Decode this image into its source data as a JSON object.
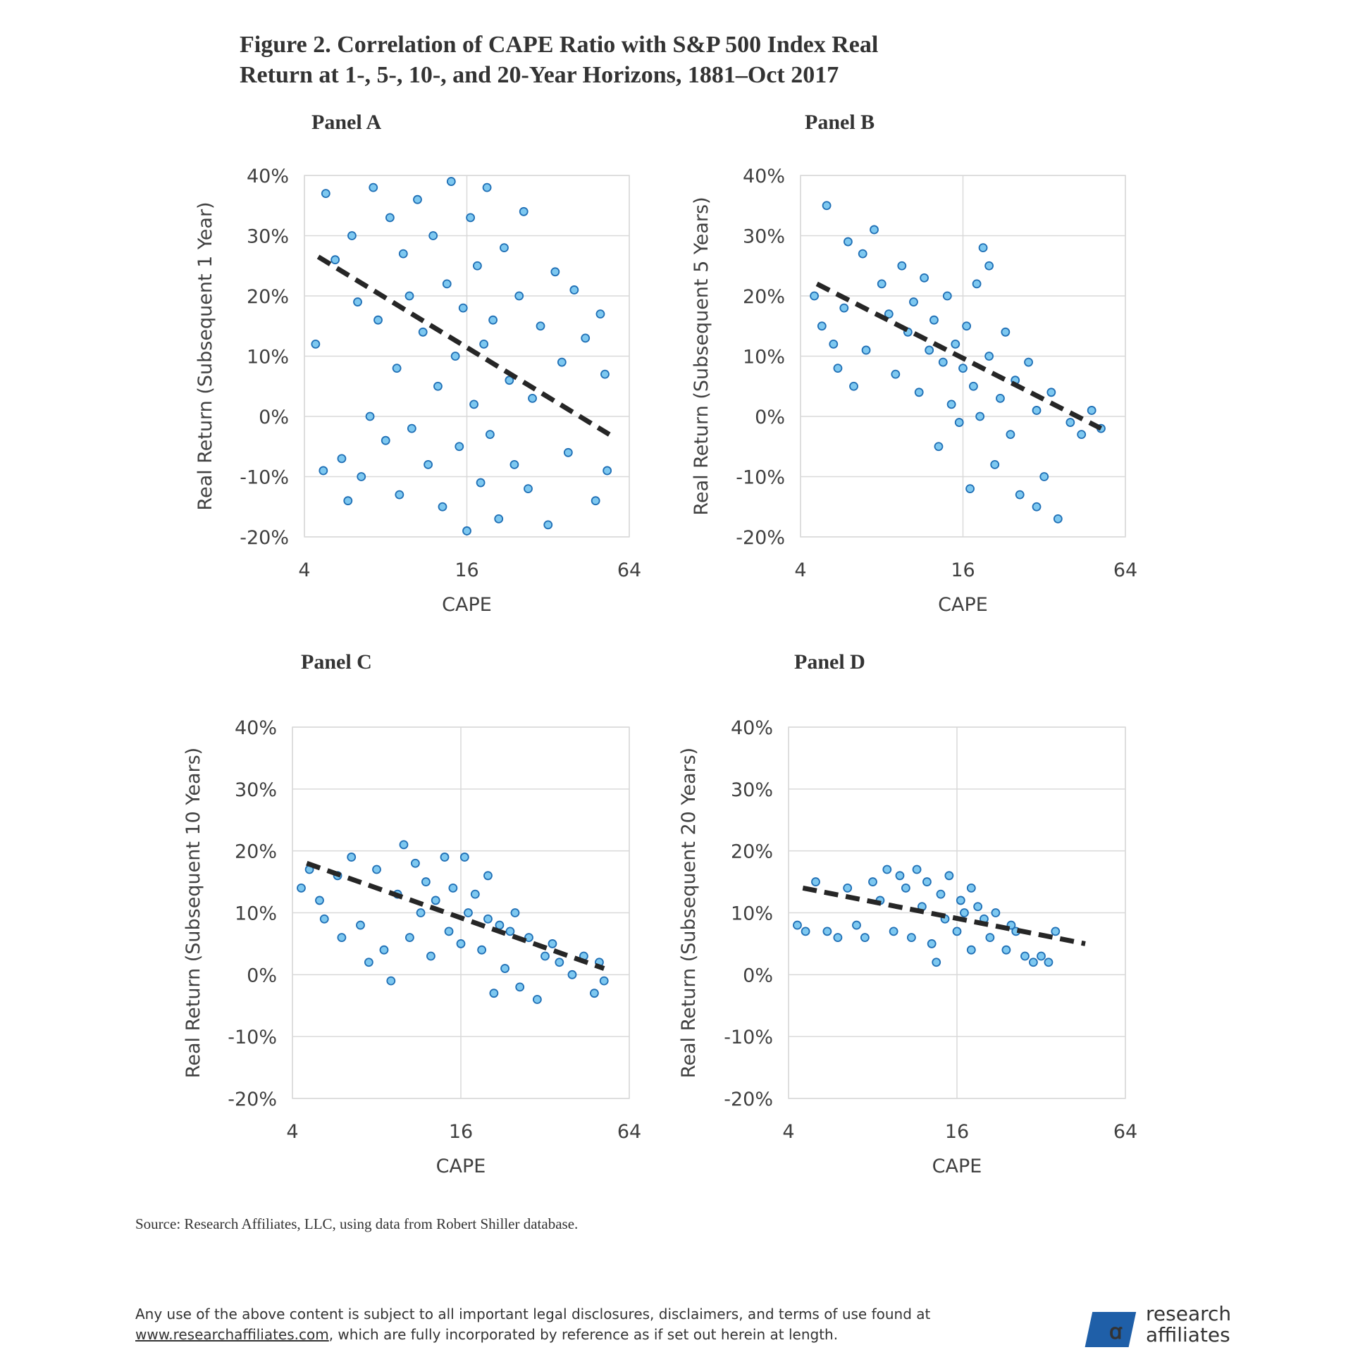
{
  "title": [
    "Figure 2. Correlation of CAPE Ratio with S&P 500 Index Real",
    "Return at 1-, 5-, 10-, and 20-Year Horizons, 1881–Oct 2017"
  ],
  "chart_data": [
    {
      "type": "scatter",
      "title": "Panel A",
      "x_label": "CAPE",
      "y_label": "Real Return (Subsequent 1 Year)",
      "x_scale": "log",
      "xlim": [
        4,
        64
      ],
      "xticks": [
        4,
        16,
        64
      ],
      "ylim": [
        -20,
        40
      ],
      "yticks": [
        {
          "value": -20,
          "label": "-20%"
        },
        {
          "value": -10,
          "label": "-10%"
        },
        {
          "value": 0,
          "label": "0%"
        },
        {
          "value": 10,
          "label": "10%"
        },
        {
          "value": 20,
          "label": "20%"
        },
        {
          "value": 30,
          "label": "30%"
        },
        {
          "value": 40,
          "label": "40%"
        }
      ],
      "grid": true,
      "series": [
        {
          "color": "#7dc8f0",
          "x": [
            4.4,
            4.7,
            4.8,
            5.2,
            5.5,
            5.8,
            6,
            6.3,
            6.5,
            7,
            7.2,
            7.5,
            8,
            8.3,
            8.8,
            9,
            9.3,
            9.8,
            10,
            10.5,
            11,
            11.5,
            12,
            12.5,
            13,
            13.5,
            14,
            14.5,
            15,
            15.5,
            16,
            16.5,
            17,
            17.5,
            18,
            18.5,
            19,
            19.5,
            20,
            21,
            22,
            23,
            24,
            25,
            26,
            27,
            28,
            30,
            32,
            34,
            36,
            38,
            40,
            44,
            48,
            52,
            53,
            50
          ],
          "values": [
            12,
            -9,
            37,
            26,
            -7,
            -14,
            30,
            19,
            -10,
            0,
            38,
            16,
            -4,
            33,
            8,
            -13,
            27,
            20,
            -2,
            36,
            14,
            -8,
            30,
            5,
            -15,
            22,
            39,
            10,
            -5,
            18,
            -19,
            33,
            2,
            25,
            -11,
            12,
            38,
            -3,
            16,
            -17,
            28,
            6,
            -8,
            20,
            34,
            -12,
            3,
            15,
            -18,
            24,
            9,
            -6,
            21,
            13,
            -14,
            7,
            -9,
            17
          ]
        },
        {
          "style": "dashed",
          "color": "#262626",
          "x": [
            4.5,
            54
          ],
          "values": [
            26.5,
            -3
          ]
        }
      ]
    },
    {
      "type": "scatter",
      "title": "Panel B",
      "x_label": "CAPE",
      "y_label": "Real Return (Subsequent 5 Years)",
      "x_scale": "log",
      "xlim": [
        4,
        64
      ],
      "xticks": [
        4,
        16,
        64
      ],
      "ylim": [
        -20,
        40
      ],
      "yticks": [
        {
          "value": -20,
          "label": "-20%"
        },
        {
          "value": -10,
          "label": "-10%"
        },
        {
          "value": 0,
          "label": "0%"
        },
        {
          "value": 10,
          "label": "10%"
        },
        {
          "value": 20,
          "label": "20%"
        },
        {
          "value": 30,
          "label": "30%"
        },
        {
          "value": 40,
          "label": "40%"
        }
      ],
      "grid": true,
      "series": [
        {
          "color": "#7dc8f0",
          "x": [
            4.5,
            4.8,
            5,
            5.3,
            5.5,
            5.8,
            6,
            6.3,
            6.8,
            7,
            7.5,
            8,
            8.5,
            9,
            9.5,
            10,
            10.5,
            11,
            11.5,
            12,
            12.5,
            13,
            13.5,
            14,
            14.5,
            15,
            15.5,
            16,
            16.5,
            17,
            17.5,
            18,
            18.5,
            19,
            20,
            21,
            22,
            23,
            24,
            25,
            26,
            28,
            30,
            32,
            34,
            36,
            40,
            44,
            48,
            52,
            30,
            20
          ],
          "values": [
            20,
            15,
            35,
            12,
            8,
            18,
            29,
            5,
            27,
            11,
            31,
            22,
            17,
            7,
            25,
            14,
            19,
            4,
            23,
            11,
            16,
            -5,
            9,
            20,
            2,
            12,
            -1,
            8,
            15,
            -12,
            5,
            22,
            0,
            28,
            10,
            -8,
            3,
            14,
            -3,
            6,
            -13,
            9,
            1,
            -10,
            4,
            -17,
            -1,
            -3,
            1,
            -2,
            -15,
            25
          ]
        },
        {
          "style": "dashed",
          "color": "#262626",
          "x": [
            4.6,
            52
          ],
          "values": [
            22,
            -2
          ]
        }
      ]
    },
    {
      "type": "scatter",
      "title": "Panel C",
      "x_label": "CAPE",
      "y_label": "Real Return (Subsequent 10 Years)",
      "x_scale": "log",
      "xlim": [
        4,
        64
      ],
      "xticks": [
        4,
        16,
        64
      ],
      "ylim": [
        -20,
        40
      ],
      "yticks": [
        {
          "value": -20,
          "label": "-20%"
        },
        {
          "value": -10,
          "label": "-10%"
        },
        {
          "value": 0,
          "label": "0%"
        },
        {
          "value": 10,
          "label": "10%"
        },
        {
          "value": 20,
          "label": "20%"
        },
        {
          "value": 30,
          "label": "30%"
        },
        {
          "value": 40,
          "label": "40%"
        }
      ],
      "grid": true,
      "series": [
        {
          "color": "#7dc8f0",
          "x": [
            4.3,
            4.6,
            5,
            5.2,
            5.8,
            6,
            6.5,
            7,
            7.5,
            8,
            8.5,
            9,
            9.5,
            10,
            10.5,
            11,
            11.5,
            12,
            12.5,
            13,
            14,
            14.5,
            15,
            16,
            16.5,
            17,
            18,
            19,
            20,
            21,
            22,
            23,
            24,
            26,
            28,
            30,
            32,
            34,
            36,
            40,
            44,
            48,
            52,
            50,
            25,
            20
          ],
          "values": [
            14,
            17,
            12,
            9,
            16,
            6,
            19,
            8,
            2,
            17,
            4,
            -1,
            13,
            21,
            6,
            18,
            10,
            15,
            3,
            12,
            19,
            7,
            14,
            5,
            19,
            10,
            13,
            4,
            9,
            -3,
            8,
            1,
            7,
            -2,
            6,
            -4,
            3,
            5,
            2,
            0,
            3,
            -3,
            -1,
            2,
            10,
            16
          ]
        },
        {
          "style": "dashed",
          "color": "#262626",
          "x": [
            4.5,
            52
          ],
          "values": [
            18,
            1
          ]
        }
      ]
    },
    {
      "type": "scatter",
      "title": "Panel D",
      "x_label": "CAPE",
      "y_label": "Real Return (Subsequent 20 Years)",
      "x_scale": "log",
      "xlim": [
        4,
        64
      ],
      "xticks": [
        4,
        16,
        64
      ],
      "ylim": [
        -20,
        40
      ],
      "yticks": [
        {
          "value": -20,
          "label": "-20%"
        },
        {
          "value": -10,
          "label": "-10%"
        },
        {
          "value": 0,
          "label": "0%"
        },
        {
          "value": 10,
          "label": "10%"
        },
        {
          "value": 20,
          "label": "20%"
        },
        {
          "value": 30,
          "label": "30%"
        },
        {
          "value": 40,
          "label": "40%"
        }
      ],
      "grid": true,
      "series": [
        {
          "color": "#7dc8f0",
          "x": [
            4.3,
            4.6,
            5,
            5.5,
            6,
            6.5,
            7,
            7.5,
            8,
            8.5,
            9,
            9.5,
            10,
            10.5,
            11,
            11.5,
            12,
            12.5,
            13,
            13.5,
            14,
            14.5,
            15,
            16,
            16.5,
            17,
            18,
            19,
            20,
            21,
            22,
            24,
            26,
            28,
            30,
            32,
            34,
            36,
            25,
            18
          ],
          "values": [
            8,
            7,
            15,
            7,
            6,
            14,
            8,
            6,
            15,
            12,
            17,
            7,
            16,
            14,
            6,
            17,
            11,
            15,
            5,
            2,
            13,
            9,
            16,
            7,
            12,
            10,
            4,
            11,
            9,
            6,
            10,
            4,
            7,
            3,
            2,
            3,
            2,
            7,
            8,
            14
          ]
        },
        {
          "style": "dashed",
          "color": "#262626",
          "x": [
            4.5,
            46
          ],
          "values": [
            14,
            5
          ]
        }
      ]
    }
  ],
  "source": "Source:  Research Affiliates, LLC, using data from Robert Shiller database.",
  "disclaimer": [
    "Any use of the above content is subject to all important legal disclosures, disclaimers, and terms of use found at",
    "www.researchaffiliates.com",
    ", which are fully incorporated by reference as if set out herein at length."
  ],
  "logo": [
    "research",
    "affiliates"
  ]
}
